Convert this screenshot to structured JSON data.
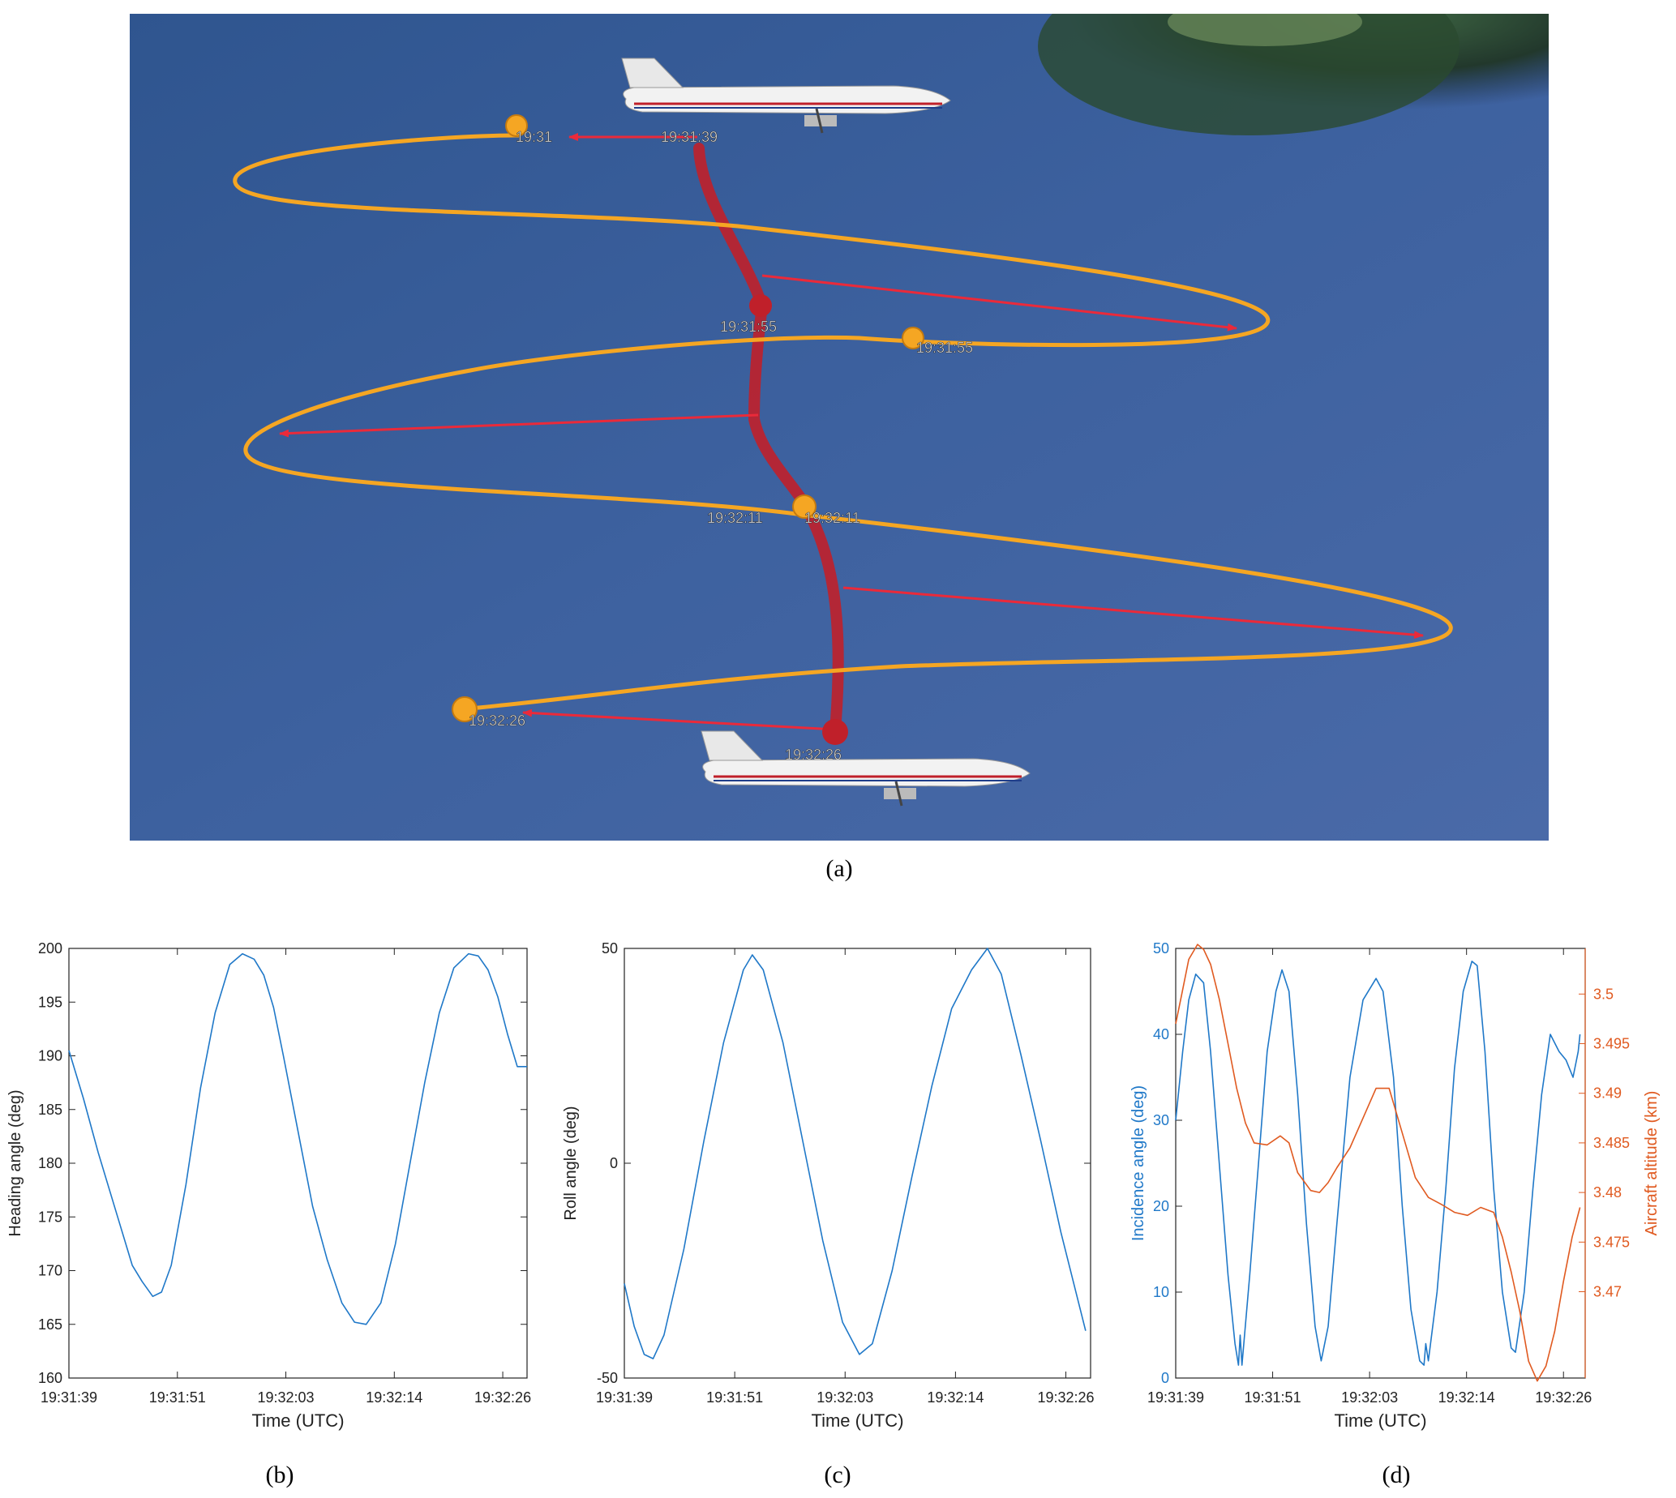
{
  "captions": {
    "a": "(a)",
    "b": "(b)",
    "c": "(c)",
    "d": "(d)"
  },
  "map": {
    "labels": [
      "19:31",
      "19:31:39",
      "19:31:55",
      "19:31:55",
      "19:32:11",
      "19:32:11",
      "19:32:26",
      "19:32:26"
    ],
    "colors": {
      "sea": "#3a5f9e",
      "track": "#f5a623",
      "nadir": "#c0202a",
      "arrow": "#ea2a3a",
      "land": "#2f4a33"
    }
  },
  "chart_data": [
    {
      "type": "line",
      "ylabel": "Heading angle (deg)",
      "xlabel": "Time (UTC)",
      "xticks": [
        "19:31:39",
        "19:31:51",
        "19:32:03",
        "19:32:14",
        "19:32:26"
      ],
      "xlim_seconds": [
        0,
        47
      ],
      "ylim": [
        160,
        200
      ],
      "yticks": [
        "160",
        "165",
        "170",
        "175",
        "180",
        "185",
        "190",
        "195",
        "200"
      ],
      "series": [
        {
          "color": "#1f78c8",
          "x": [
            0,
            1.5,
            3,
            5,
            6.5,
            7.5,
            8.6,
            9.5,
            10.5,
            12,
            13.5,
            15,
            16.5,
            17.8,
            19,
            20,
            21,
            22,
            23.5,
            25,
            26.5,
            28,
            29.3,
            30.5,
            32,
            33.5,
            35,
            36.5,
            38,
            39.5,
            41,
            42,
            43,
            44,
            45,
            46,
            47
          ],
          "y": [
            190.5,
            186,
            181,
            175,
            170.5,
            169,
            167.6,
            168,
            170.5,
            178,
            187,
            194,
            198.5,
            199.5,
            199,
            197.5,
            194.5,
            190,
            183,
            176,
            171,
            167,
            165.2,
            165,
            167,
            172.5,
            180,
            187.5,
            194,
            198.2,
            199.5,
            199.3,
            198,
            195.5,
            192,
            189,
            189
          ]
        }
      ]
    },
    {
      "type": "line",
      "ylabel": "Roll angle (deg)",
      "xlabel": "Time (UTC)",
      "xticks": [
        "19:31:39",
        "19:31:51",
        "19:32:03",
        "19:32:14",
        "19:32:26"
      ],
      "xlim_seconds": [
        0,
        47
      ],
      "ylim": [
        -50,
        50
      ],
      "yticks": [
        "-50",
        "0",
        "50"
      ],
      "series": [
        {
          "color": "#1f78c8",
          "x": [
            0,
            1,
            2,
            2.9,
            4,
            6,
            8,
            10,
            12,
            12.9,
            14,
            16,
            18,
            20,
            22,
            23.7,
            25,
            27,
            29,
            31,
            33,
            35,
            36.6,
            38,
            40,
            42,
            44,
            46.5
          ],
          "y": [
            -28,
            -38,
            -44.5,
            -45.5,
            -40,
            -20,
            5,
            28,
            45,
            48.5,
            45,
            28,
            5,
            -18,
            -37,
            -44.5,
            -42,
            -25,
            -3,
            18,
            36,
            45,
            50,
            44,
            25,
            5,
            -16,
            -39
          ]
        }
      ]
    },
    {
      "type": "line",
      "ylabel": "Incidence angle (deg)",
      "y2label": "Aircraft altitude (km)",
      "xlabel": "Time (UTC)",
      "xticks": [
        "19:31:39",
        "19:31:51",
        "19:32:03",
        "19:32:14",
        "19:32:26"
      ],
      "xlim_seconds": [
        0,
        47
      ],
      "ylim": [
        0,
        50
      ],
      "yticks": [
        "0",
        "10",
        "20",
        "30",
        "40",
        "50"
      ],
      "y2lim": [
        3.4613,
        3.5046
      ],
      "y2ticks": [
        "3.47",
        "3.475",
        "3.48",
        "3.485",
        "3.49",
        "3.495",
        "3.5"
      ],
      "series": [
        {
          "name": "Incidence angle",
          "color": "#1f78c8",
          "axis": "left",
          "x": [
            0,
            0.8,
            1.5,
            2.3,
            3.2,
            4,
            5,
            6,
            6.8,
            7.2,
            7.4,
            7.6,
            8.5,
            9.5,
            10.5,
            11.5,
            12.2,
            13,
            14,
            15,
            16,
            16.7,
            17.5,
            18.5,
            20,
            21.5,
            23,
            23.8,
            25,
            26,
            27,
            28,
            28.5,
            28.7,
            29,
            30,
            31,
            32,
            33,
            34,
            34.6,
            35.5,
            36.5,
            37.5,
            38.5,
            39,
            40,
            41,
            42,
            43,
            44,
            44.8,
            45.6,
            46.2,
            46.4
          ],
          "y": [
            30,
            38,
            44,
            47,
            46,
            38,
            25,
            12,
            4,
            1.5,
            5,
            1.5,
            12,
            25,
            38,
            45,
            47.5,
            45,
            33,
            18,
            6,
            2,
            6,
            18,
            35,
            44,
            46.5,
            45,
            35,
            20,
            8,
            2,
            1.5,
            4,
            2,
            10,
            22,
            36,
            45,
            48.5,
            48,
            38,
            22,
            10,
            3.5,
            3,
            10,
            22,
            33,
            40,
            38,
            37,
            35,
            38,
            40
          ]
        },
        {
          "name": "Aircraft altitude",
          "color": "#e05a20",
          "axis": "right",
          "x": [
            0,
            0.7,
            1.5,
            2.5,
            3.2,
            4,
            5,
            6,
            7,
            8,
            9,
            10.5,
            12,
            13,
            14,
            15.5,
            16.5,
            17.5,
            18.5,
            20,
            21.5,
            23,
            24.5,
            26,
            27.5,
            29,
            30.5,
            32,
            33.5,
            35,
            36.5,
            37.5,
            38.5,
            39.5,
            40.5,
            41.5,
            42.5,
            43.5,
            44.5,
            45.5,
            46.4
          ],
          "y": [
            3.497,
            3.5,
            3.5035,
            3.505,
            3.5045,
            3.503,
            3.4995,
            3.495,
            3.4905,
            3.487,
            3.485,
            3.4848,
            3.4857,
            3.485,
            3.482,
            3.4802,
            3.48,
            3.481,
            3.4825,
            3.4845,
            3.4875,
            3.4905,
            3.4905,
            3.486,
            3.4815,
            3.4795,
            3.4788,
            3.478,
            3.4777,
            3.4785,
            3.478,
            3.4755,
            3.472,
            3.468,
            3.463,
            3.461,
            3.4625,
            3.466,
            3.471,
            3.4755,
            3.4785
          ]
        }
      ]
    }
  ]
}
